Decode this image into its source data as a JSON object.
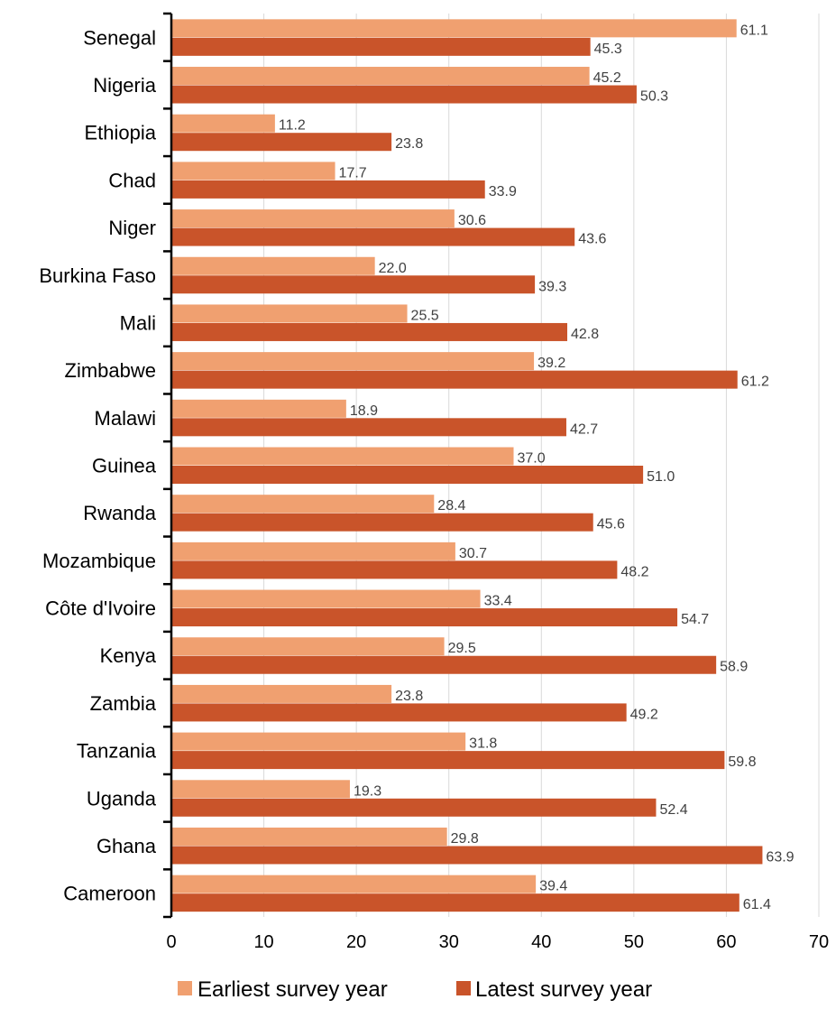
{
  "chart_data": {
    "type": "bar",
    "orientation": "horizontal",
    "categories": [
      "Senegal",
      "Nigeria",
      "Ethiopia",
      "Chad",
      "Niger",
      "Burkina Faso",
      "Mali",
      "Zimbabwe",
      "Malawi",
      "Guinea",
      "Rwanda",
      "Mozambique",
      "Côte d'Ivoire",
      "Kenya",
      "Zambia",
      "Tanzania",
      "Uganda",
      "Ghana",
      "Cameroon"
    ],
    "series": [
      {
        "name": "Earliest survey year",
        "color": "#F0A070",
        "values": [
          61.1,
          45.2,
          11.2,
          17.7,
          30.6,
          22.0,
          25.5,
          39.2,
          18.9,
          37.0,
          28.4,
          30.7,
          33.4,
          29.5,
          23.8,
          31.8,
          19.3,
          29.8,
          39.4
        ],
        "labels": [
          "61.1",
          "45.2",
          "11.2",
          "17.7",
          "30.6",
          "22.0",
          "25.5",
          "39.2",
          "18.9",
          "37.0",
          "28.4",
          "30.7",
          "33.4",
          "29.5",
          "23.8",
          "31.8",
          "19.3",
          "29.8",
          "39.4"
        ]
      },
      {
        "name": "Latest survey year",
        "color": "#C9542A",
        "values": [
          45.3,
          50.3,
          23.8,
          33.9,
          43.6,
          39.3,
          42.8,
          61.2,
          42.7,
          51.0,
          45.6,
          48.2,
          54.7,
          58.9,
          49.2,
          59.8,
          52.4,
          63.9,
          61.4
        ],
        "labels": [
          "45.3",
          "50.3",
          "23.8",
          "33.9",
          "43.6",
          "39.3",
          "42.8",
          "61.2",
          "42.7",
          "51.0",
          "45.6",
          "48.2",
          "54.7",
          "58.9",
          "49.2",
          "59.8",
          "52.4",
          "63.9",
          "61.4"
        ]
      }
    ],
    "xlim": [
      0,
      70
    ],
    "xticks": [
      "0",
      "10",
      "20",
      "30",
      "40",
      "50",
      "60",
      "70"
    ],
    "title": "",
    "xlabel": "",
    "ylabel": "",
    "grid": "vertical",
    "legend_position": "bottom"
  }
}
